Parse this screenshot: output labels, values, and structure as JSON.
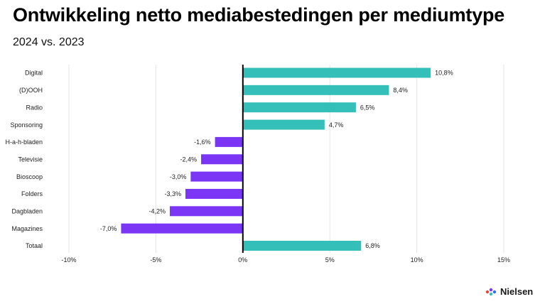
{
  "header": {
    "title": "Ontwikkeling netto mediabestedingen per mediumtype",
    "subtitle": "2024 vs. 2023"
  },
  "brand": {
    "name": "Nielsen",
    "logo_icon": "nielsen-dots-icon"
  },
  "colors": {
    "positive": "#35bfb9",
    "negative": "#7b35f5",
    "zero_line": "#000000",
    "grid": "#e6e6e6"
  },
  "chart_data": {
    "type": "bar",
    "orientation": "horizontal",
    "categories": [
      "Digital",
      "(D)OOH",
      "Radio",
      "Sponsoring",
      "H-a-h-bladen",
      "Televisie",
      "Bioscoop",
      "Folders",
      "Dagbladen",
      "Magazines",
      "Totaal"
    ],
    "values": [
      10.8,
      8.4,
      6.5,
      4.7,
      -1.6,
      -2.4,
      -3.0,
      -3.3,
      -4.2,
      -7.0,
      6.8
    ],
    "value_labels": [
      "10,8%",
      "8,4%",
      "6,5%",
      "4,7%",
      "-1,6%",
      "-2,4%",
      "-3,0%",
      "-3,3%",
      "-4,2%",
      "-7,0%",
      "6,8%"
    ],
    "xlim": [
      -10,
      15
    ],
    "xticks": [
      -10,
      -5,
      0,
      5,
      10,
      15
    ],
    "xtick_labels": [
      "-10%",
      "-5%",
      "0%",
      "5%",
      "10%",
      "15%"
    ],
    "grid": "vertical",
    "legend": "none"
  }
}
